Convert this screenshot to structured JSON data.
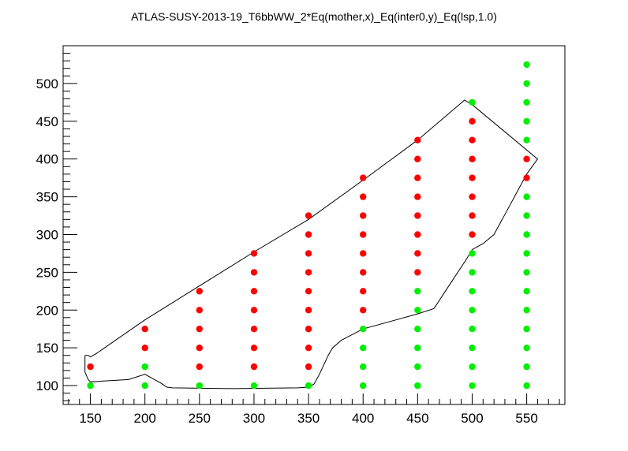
{
  "chart_data": {
    "type": "scatter",
    "title": "ATLAS-SUSY-2013-19_T6bbWW_2*Eq(mother,x)_Eq(inter0,y)_Eq(lsp,1.0)",
    "xlabel": "",
    "ylabel": "",
    "xlim": [
      125,
      585
    ],
    "ylim": [
      75,
      550
    ],
    "x_ticks": [
      150,
      200,
      250,
      300,
      350,
      400,
      450,
      500,
      550
    ],
    "y_ticks": [
      100,
      150,
      200,
      250,
      300,
      350,
      400,
      450,
      500
    ],
    "grid": false,
    "colors": {
      "allowed": "#00ee00",
      "excluded": "#ff0000",
      "contour": "#000000"
    },
    "series": [
      {
        "category": "excluded",
        "color": "#ff0000",
        "points": [
          [
            150,
            125
          ],
          [
            200,
            150
          ],
          [
            200,
            175
          ],
          [
            250,
            125
          ],
          [
            250,
            150
          ],
          [
            250,
            175
          ],
          [
            250,
            200
          ],
          [
            250,
            225
          ],
          [
            300,
            125
          ],
          [
            300,
            150
          ],
          [
            300,
            175
          ],
          [
            300,
            200
          ],
          [
            300,
            225
          ],
          [
            300,
            250
          ],
          [
            300,
            275
          ],
          [
            350,
            125
          ],
          [
            350,
            150
          ],
          [
            350,
            175
          ],
          [
            350,
            200
          ],
          [
            350,
            225
          ],
          [
            350,
            250
          ],
          [
            350,
            275
          ],
          [
            350,
            300
          ],
          [
            350,
            325
          ],
          [
            400,
            200
          ],
          [
            400,
            225
          ],
          [
            400,
            250
          ],
          [
            400,
            275
          ],
          [
            400,
            300
          ],
          [
            400,
            325
          ],
          [
            400,
            350
          ],
          [
            400,
            375
          ],
          [
            450,
            250
          ],
          [
            450,
            275
          ],
          [
            450,
            300
          ],
          [
            450,
            325
          ],
          [
            450,
            350
          ],
          [
            450,
            375
          ],
          [
            450,
            400
          ],
          [
            450,
            425
          ],
          [
            500,
            300
          ],
          [
            500,
            325
          ],
          [
            500,
            350
          ],
          [
            500,
            375
          ],
          [
            500,
            400
          ],
          [
            500,
            425
          ],
          [
            500,
            450
          ],
          [
            550,
            375
          ],
          [
            550,
            400
          ]
        ]
      },
      {
        "category": "allowed",
        "color": "#00ee00",
        "points": [
          [
            150,
            100
          ],
          [
            200,
            100
          ],
          [
            200,
            125
          ],
          [
            250,
            100
          ],
          [
            300,
            100
          ],
          [
            350,
            100
          ],
          [
            400,
            100
          ],
          [
            400,
            125
          ],
          [
            400,
            150
          ],
          [
            400,
            175
          ],
          [
            450,
            100
          ],
          [
            450,
            125
          ],
          [
            450,
            150
          ],
          [
            450,
            175
          ],
          [
            450,
            200
          ],
          [
            450,
            225
          ],
          [
            500,
            100
          ],
          [
            500,
            125
          ],
          [
            500,
            150
          ],
          [
            500,
            175
          ],
          [
            500,
            200
          ],
          [
            500,
            225
          ],
          [
            500,
            250
          ],
          [
            500,
            275
          ],
          [
            500,
            475
          ],
          [
            550,
            100
          ],
          [
            550,
            125
          ],
          [
            550,
            150
          ],
          [
            550,
            175
          ],
          [
            550,
            200
          ],
          [
            550,
            225
          ],
          [
            550,
            250
          ],
          [
            550,
            275
          ],
          [
            550,
            300
          ],
          [
            550,
            325
          ],
          [
            550,
            350
          ],
          [
            550,
            425
          ],
          [
            550,
            450
          ],
          [
            550,
            475
          ],
          [
            550,
            500
          ],
          [
            550,
            525
          ]
        ]
      }
    ],
    "contour": [
      [
        145,
        140
      ],
      [
        148,
        140
      ],
      [
        150,
        138
      ],
      [
        155,
        142
      ],
      [
        200,
        187
      ],
      [
        250,
        232
      ],
      [
        300,
        277
      ],
      [
        350,
        320
      ],
      [
        400,
        372
      ],
      [
        450,
        425
      ],
      [
        493,
        478
      ],
      [
        500,
        472
      ],
      [
        560,
        400
      ],
      [
        550,
        380
      ],
      [
        535,
        340
      ],
      [
        520,
        300
      ],
      [
        510,
        288
      ],
      [
        500,
        280
      ],
      [
        495,
        268
      ],
      [
        480,
        235
      ],
      [
        465,
        202
      ],
      [
        450,
        195
      ],
      [
        400,
        175
      ],
      [
        380,
        160
      ],
      [
        372,
        150
      ],
      [
        368,
        140
      ],
      [
        360,
        115
      ],
      [
        355,
        102
      ],
      [
        350,
        98
      ],
      [
        340,
        97
      ],
      [
        280,
        96
      ],
      [
        225,
        97
      ],
      [
        220,
        98
      ],
      [
        215,
        103
      ],
      [
        200,
        115
      ],
      [
        185,
        108
      ],
      [
        150,
        105
      ],
      [
        148,
        108
      ],
      [
        145,
        118
      ],
      [
        145,
        140
      ]
    ]
  }
}
